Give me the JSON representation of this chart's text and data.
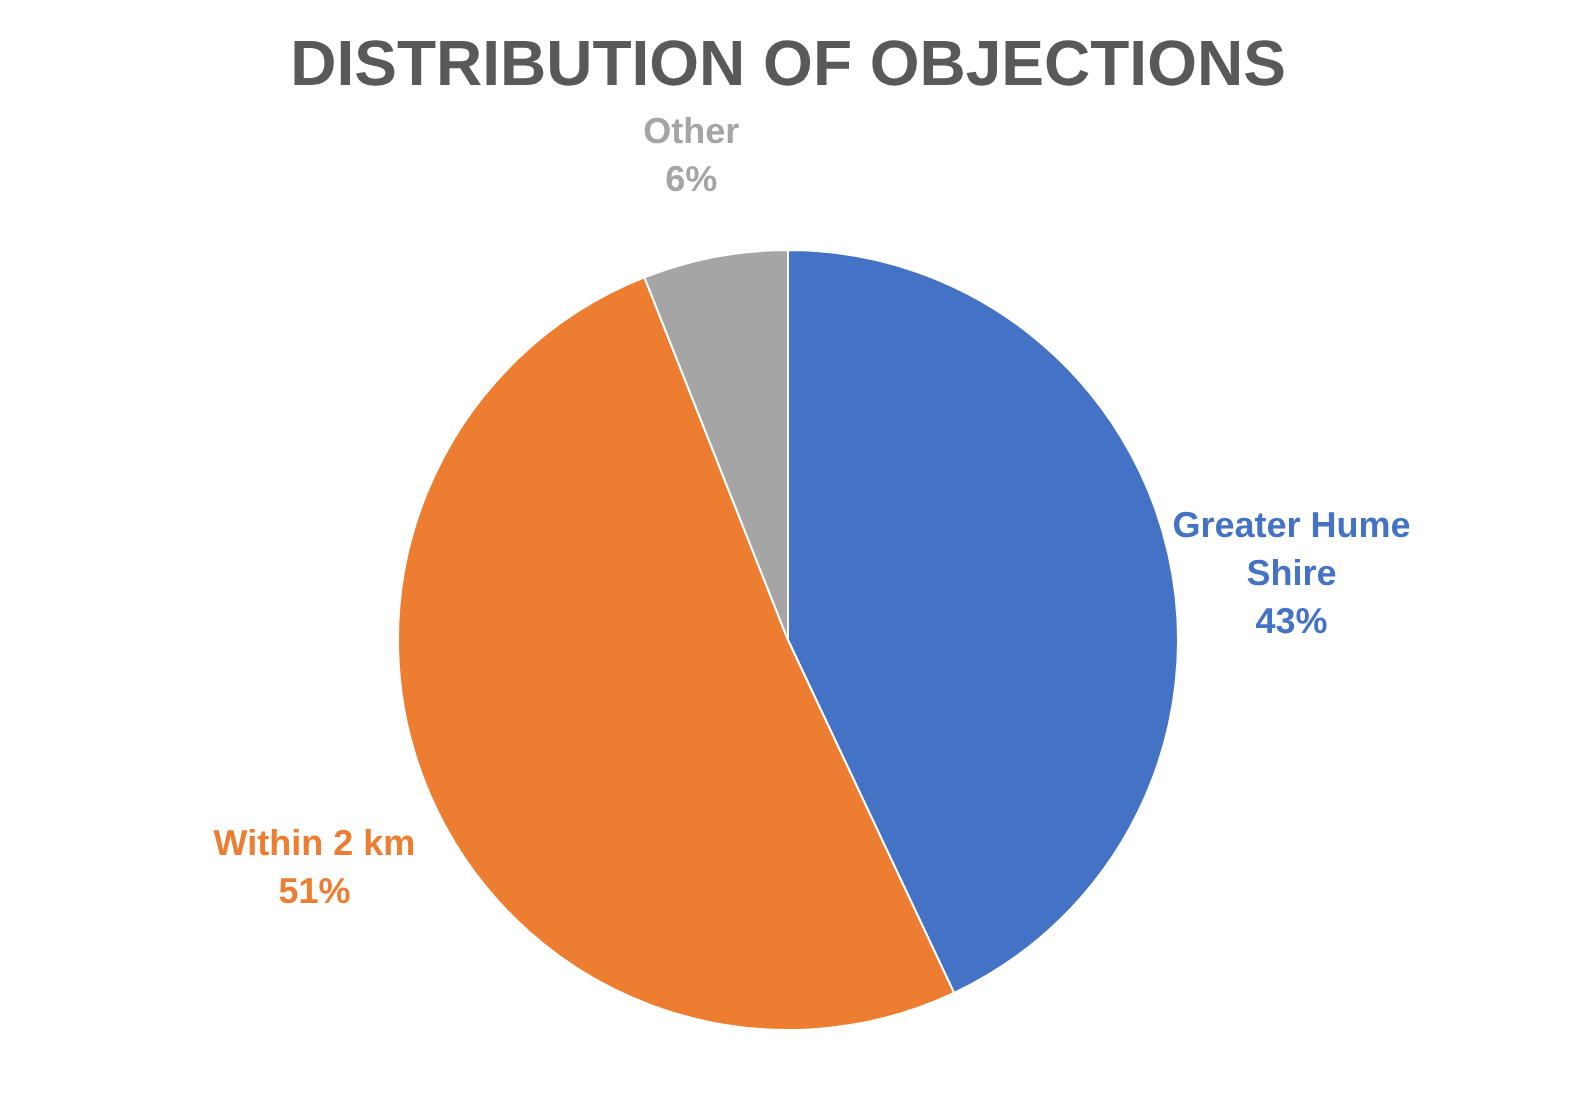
{
  "chart_data": {
    "type": "pie",
    "title": "DISTRIBUTION OF OBJECTIONS",
    "categories": [
      "Greater Hume Shire",
      "Within 2 km",
      "Other"
    ],
    "values": [
      43,
      51,
      6
    ],
    "value_labels": [
      "43%",
      "51%",
      "6%"
    ],
    "colors": [
      "#4472c4",
      "#ed7d31",
      "#a5a5a5"
    ]
  }
}
